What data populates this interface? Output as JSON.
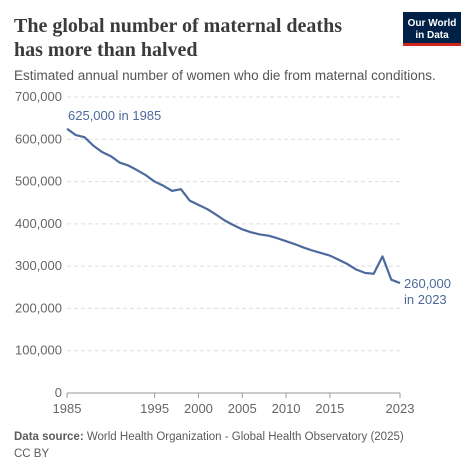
{
  "chart_data": {
    "type": "line",
    "title": [
      "The global number of maternal deaths",
      "has more than halved"
    ],
    "subtitle": "Estimated annual number of women who die from maternal conditions.",
    "logo": [
      "Our World",
      "in Data"
    ],
    "x": [
      1985,
      1986,
      1987,
      1988,
      1989,
      1990,
      1991,
      1992,
      1993,
      1994,
      1995,
      1996,
      1997,
      1998,
      1999,
      2000,
      2001,
      2002,
      2003,
      2004,
      2005,
      2006,
      2007,
      2008,
      2009,
      2010,
      2011,
      2012,
      2013,
      2014,
      2015,
      2016,
      2017,
      2018,
      2019,
      2020,
      2021,
      2022,
      2023
    ],
    "series": [
      {
        "name": "Maternal deaths",
        "color": "#4c6a9c",
        "values": [
          625000,
          610000,
          605000,
          585000,
          570000,
          560000,
          545000,
          538000,
          527000,
          515000,
          500000,
          490000,
          478000,
          482000,
          455000,
          445000,
          435000,
          422000,
          408000,
          397000,
          387000,
          380000,
          375000,
          372000,
          366000,
          359000,
          352000,
          344000,
          337000,
          331000,
          325000,
          315000,
          305000,
          292000,
          284000,
          282000,
          323000,
          268000,
          260000
        ]
      }
    ],
    "xlim": [
      1985,
      2023
    ],
    "xticks": [
      1985,
      1995,
      2000,
      2005,
      2010,
      2015,
      2023
    ],
    "ylim": [
      0,
      700000
    ],
    "yticks": [
      0,
      {
        "value": 100000,
        "label": "100,000"
      },
      {
        "value": 200000,
        "label": "200,000"
      },
      {
        "value": 300000,
        "label": "300,000"
      },
      {
        "value": 400000,
        "label": "400,000"
      },
      {
        "value": 500000,
        "label": "500,000"
      },
      {
        "value": 600000,
        "label": "600,000"
      },
      {
        "value": 700000,
        "label": "700,000"
      }
    ],
    "grid": true,
    "annotations": [
      "625,000 in 1985",
      "260,000",
      "in 2023"
    ],
    "source_label": "Data source:",
    "source": "World Health Organization - Global Health Observatory (2025)",
    "license": "CC BY"
  }
}
